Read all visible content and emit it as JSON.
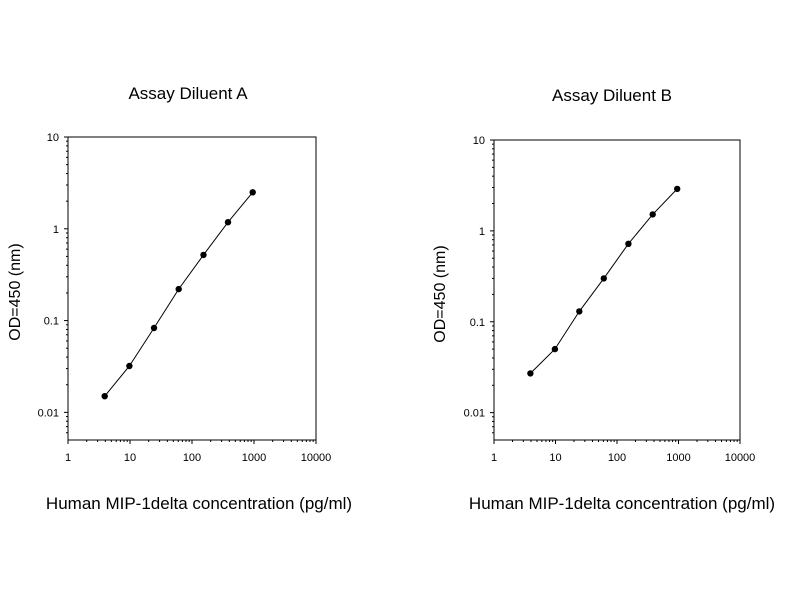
{
  "chart_data": [
    {
      "type": "line",
      "title": "Assay Diluent A",
      "xlabel": "Human MIP-1delta concentration (pg/ml)",
      "ylabel": "OD=450 (nm)",
      "xscale": "log",
      "yscale": "log",
      "xlim": [
        1,
        10000
      ],
      "ylim": [
        0.005,
        10
      ],
      "xticks": [
        "1",
        "10",
        "100",
        "1000",
        "10000"
      ],
      "yticks": [
        "0.01",
        "0.1",
        "1",
        "10"
      ],
      "grid": false,
      "legend": "none",
      "series": [
        {
          "color": "#000000",
          "marker": "circle",
          "x": [
            3.91,
            9.77,
            24.4,
            61,
            153,
            381,
            952
          ],
          "y": [
            0.015,
            0.032,
            0.083,
            0.22,
            0.52,
            1.18,
            2.5
          ]
        }
      ]
    },
    {
      "type": "line",
      "title": "Assay Diluent B",
      "xlabel": "Human MIP-1delta concentration (pg/ml)",
      "ylabel": "OD=450 (nm)",
      "xscale": "log",
      "yscale": "log",
      "xlim": [
        1,
        10000
      ],
      "ylim": [
        0.005,
        10
      ],
      "xticks": [
        "1",
        "10",
        "100",
        "1000",
        "10000"
      ],
      "yticks": [
        "0.01",
        "0.1",
        "1",
        "10"
      ],
      "grid": false,
      "legend": "none",
      "series": [
        {
          "color": "#000000",
          "marker": "circle",
          "x": [
            3.91,
            9.77,
            24.4,
            61,
            153,
            381,
            952
          ],
          "y": [
            0.027,
            0.05,
            0.13,
            0.3,
            0.72,
            1.52,
            2.9
          ]
        }
      ]
    }
  ]
}
